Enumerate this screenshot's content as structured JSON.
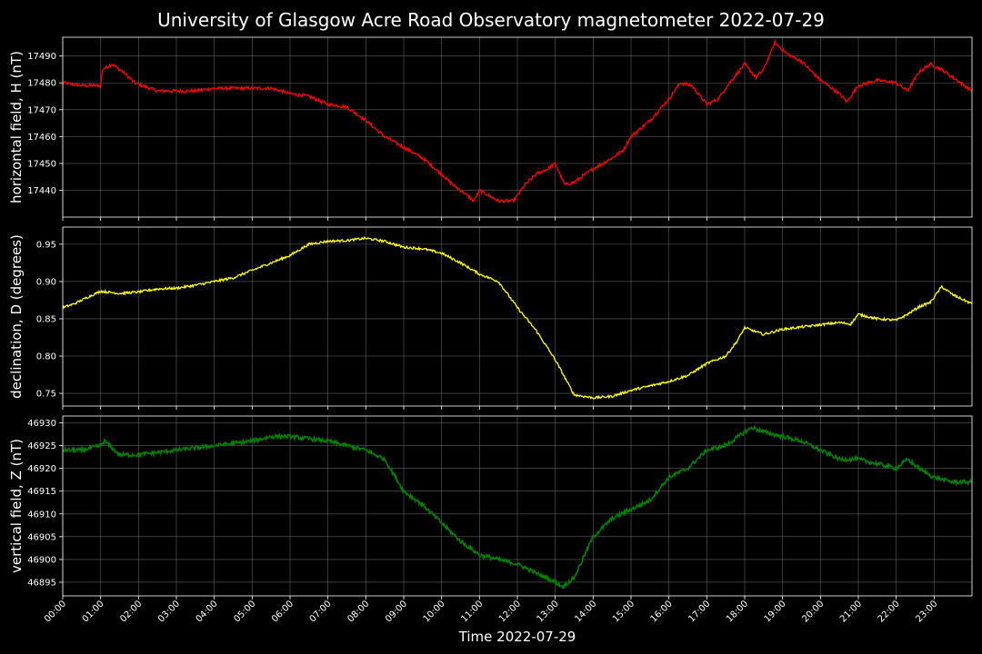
{
  "chart_data": {
    "type": "line",
    "title": "University of Glasgow Acre Road Observatory magnetometer 2022-07-29",
    "xlabel": "Time 2022-07-29",
    "x_tick_labels": [
      "00:00",
      "01:00",
      "02:00",
      "03:00",
      "04:00",
      "05:00",
      "06:00",
      "07:00",
      "08:00",
      "09:00",
      "10:00",
      "11:00",
      "12:00",
      "13:00",
      "14:00",
      "15:00",
      "16:00",
      "17:00",
      "18:00",
      "19:00",
      "20:00",
      "21:00",
      "22:00",
      "23:00"
    ],
    "x_range_hours": [
      0,
      24
    ],
    "grid": true,
    "panels": [
      {
        "name": "h-panel",
        "ylabel": "horizontal field, H (nT)",
        "color": "#ff0000",
        "ylim": [
          17430,
          17497
        ],
        "y_ticks": [
          "17440",
          "17450",
          "17460",
          "17470",
          "17480",
          "17490"
        ],
        "noise": 0.6,
        "series": {
          "x": [
            0,
            0.5,
            1.0,
            1.05,
            1.3,
            1.6,
            1.9,
            2.5,
            3.0,
            3.5,
            4.0,
            4.5,
            5.0,
            5.5,
            6.0,
            6.5,
            7.0,
            7.5,
            8.0,
            8.5,
            9.0,
            9.5,
            10.0,
            10.3,
            10.6,
            10.85,
            11.0,
            11.5,
            11.9,
            12.2,
            12.5,
            12.8,
            13.0,
            13.25,
            13.5,
            14.0,
            14.5,
            14.8,
            15.0,
            15.5,
            16.0,
            16.3,
            16.6,
            17.0,
            17.3,
            17.6,
            18.0,
            18.3,
            18.5,
            18.8,
            19.1,
            19.5,
            20.0,
            20.5,
            20.7,
            21.0,
            21.5,
            22.0,
            22.3,
            22.6,
            22.9,
            23.2,
            23.6,
            24.0
          ],
          "y": [
            17480,
            17479,
            17479,
            17485,
            17487,
            17484,
            17480,
            17477,
            17477,
            17477,
            17478,
            17478,
            17478,
            17478,
            17476,
            17475,
            17472,
            17471,
            17466,
            17460,
            17456,
            17452,
            17446,
            17442,
            17439,
            17436,
            17440,
            17436,
            17436,
            17442,
            17446,
            17448,
            17450,
            17442,
            17443,
            17448,
            17452,
            17455,
            17460,
            17466,
            17474,
            17480,
            17479,
            17472,
            17474,
            17480,
            17487,
            17482,
            17485,
            17495,
            17491,
            17488,
            17481,
            17476,
            17473,
            17479,
            17481,
            17480,
            17477,
            17484,
            17487,
            17485,
            17481,
            17477
          ]
        }
      },
      {
        "name": "d-panel",
        "ylabel": "declination, D (degrees)",
        "color": "#ffff00",
        "ylim": [
          0.733,
          0.973
        ],
        "y_ticks": [
          "0.75",
          "0.80",
          "0.85",
          "0.90",
          "0.95"
        ],
        "noise": 0.0016,
        "series": {
          "x": [
            0,
            0.3,
            0.7,
            1.0,
            1.5,
            2.0,
            2.5,
            3.0,
            3.5,
            4.0,
            4.5,
            5.0,
            5.5,
            6.0,
            6.5,
            7.0,
            7.5,
            8.0,
            8.5,
            9.0,
            9.5,
            10.0,
            10.5,
            11.0,
            11.5,
            12.0,
            12.5,
            13.0,
            13.5,
            14.0,
            14.5,
            15.0,
            15.5,
            16.0,
            16.5,
            17.0,
            17.5,
            17.8,
            18.0,
            18.5,
            19.0,
            19.5,
            20.0,
            20.5,
            20.8,
            21.0,
            21.5,
            22.0,
            22.3,
            22.6,
            22.9,
            23.2,
            23.5,
            24.0
          ],
          "y": [
            0.865,
            0.87,
            0.88,
            0.887,
            0.884,
            0.886,
            0.89,
            0.891,
            0.895,
            0.9,
            0.905,
            0.915,
            0.925,
            0.935,
            0.95,
            0.954,
            0.955,
            0.958,
            0.954,
            0.946,
            0.944,
            0.938,
            0.925,
            0.91,
            0.9,
            0.865,
            0.834,
            0.795,
            0.748,
            0.744,
            0.746,
            0.754,
            0.76,
            0.766,
            0.774,
            0.79,
            0.8,
            0.82,
            0.838,
            0.829,
            0.836,
            0.839,
            0.842,
            0.845,
            0.843,
            0.856,
            0.85,
            0.848,
            0.856,
            0.866,
            0.872,
            0.893,
            0.882,
            0.87
          ]
        }
      },
      {
        "name": "z-panel",
        "ylabel": "vertical field, Z (nT)",
        "color": "#008000",
        "ylim": [
          46892,
          46931.5
        ],
        "y_ticks": [
          "46895",
          "46900",
          "46905",
          "46910",
          "46915",
          "46920",
          "46925",
          "46930"
        ],
        "noise": 0.45,
        "series": {
          "x": [
            0,
            0.5,
            1.0,
            1.1,
            1.5,
            2.0,
            3.0,
            4.0,
            5.0,
            5.5,
            6.0,
            7.0,
            7.5,
            8.0,
            8.5,
            9.0,
            9.5,
            10.0,
            10.5,
            11.0,
            11.5,
            12.0,
            12.5,
            13.0,
            13.2,
            13.5,
            14.0,
            14.5,
            15.0,
            15.5,
            16.0,
            16.5,
            17.0,
            17.5,
            18.0,
            18.2,
            18.5,
            19.0,
            19.5,
            20.0,
            20.5,
            21.0,
            21.5,
            22.0,
            22.3,
            22.6,
            23.0,
            23.5,
            24.0
          ],
          "y": [
            46924,
            46924,
            46925,
            46926,
            46923,
            46923,
            46924,
            46925,
            46926,
            46927,
            46927,
            46926,
            46925,
            46924,
            46922,
            46915,
            46912,
            46908,
            46904,
            46901,
            46900,
            46899,
            46897,
            46895,
            46894,
            46896,
            46905,
            46909,
            46911,
            46913,
            46918,
            46920,
            46924,
            46925,
            46928,
            46929,
            46928,
            46927,
            46926,
            46924,
            46922,
            46922,
            46921,
            46920,
            46922,
            46920,
            46918,
            46917,
            46917
          ]
        }
      }
    ]
  }
}
